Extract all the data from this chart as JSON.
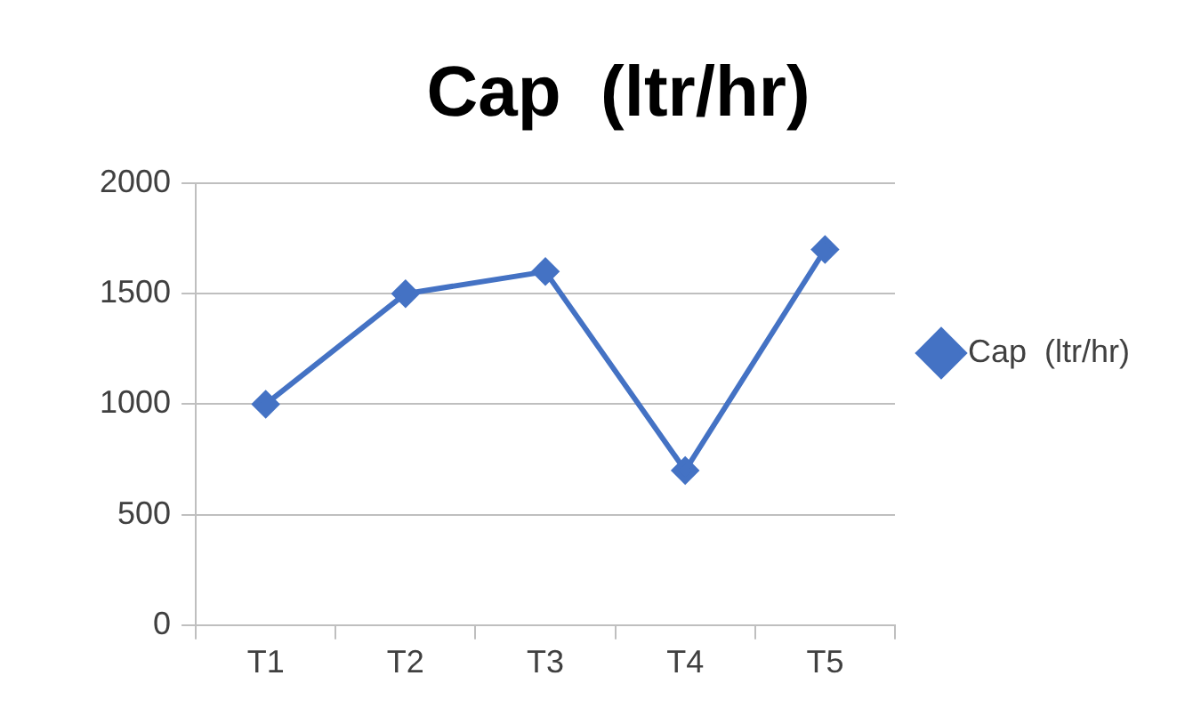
{
  "chart_data": {
    "type": "line",
    "title": "Cap  (ltr/hr)",
    "categories": [
      "T1",
      "T2",
      "T3",
      "T4",
      "T5"
    ],
    "series": [
      {
        "name": "Cap  (ltr/hr)",
        "color": "#4472c4",
        "values": [
          1000,
          1500,
          1600,
          700,
          1700
        ]
      }
    ],
    "ylim": [
      0,
      2000
    ],
    "yticks": [
      0,
      500,
      1000,
      1500,
      2000
    ],
    "grid": "y",
    "legend": "right",
    "marker": "diamond",
    "line_style": "solid"
  }
}
